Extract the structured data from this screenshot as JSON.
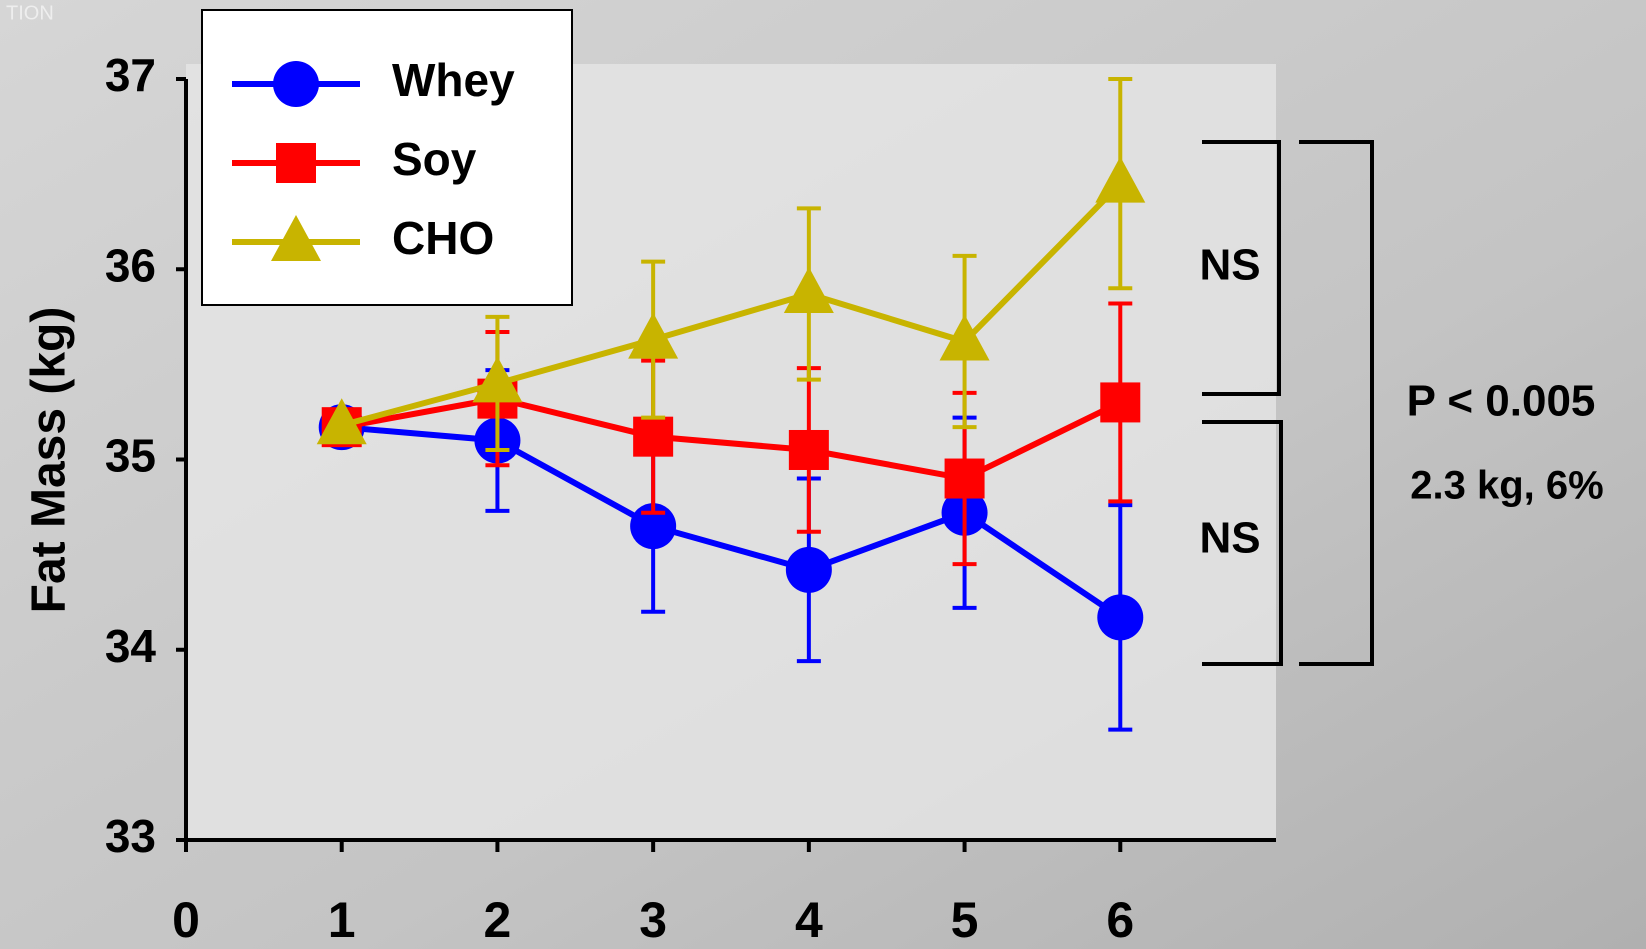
{
  "chart_data": {
    "type": "line",
    "corner_text": "TION",
    "ylabel": "Fat Mass (kg)",
    "x": [
      1,
      2,
      3,
      4,
      5,
      6
    ],
    "series": [
      {
        "name": "Whey",
        "color": "#0000ff",
        "marker": "circle",
        "values": [
          35.17,
          35.1,
          34.65,
          34.42,
          34.72,
          34.17
        ],
        "errors": [
          0,
          0.37,
          0.45,
          0.48,
          0.5,
          0.59
        ]
      },
      {
        "name": "Soy",
        "color": "#ff0000",
        "marker": "square",
        "values": [
          35.17,
          35.32,
          35.12,
          35.05,
          34.9,
          35.3
        ],
        "errors": [
          0,
          0.35,
          0.4,
          0.43,
          0.45,
          0.52
        ]
      },
      {
        "name": "CHO",
        "color": "#c8b400",
        "marker": "triangle",
        "values": [
          35.18,
          35.4,
          35.63,
          35.87,
          35.62,
          36.45
        ],
        "errors": [
          0,
          0.35,
          0.41,
          0.45,
          0.45,
          0.55
        ]
      }
    ],
    "xlim": [
      0,
      7
    ],
    "xticks": [
      0,
      1,
      2,
      3,
      4,
      5,
      6
    ],
    "ylim": [
      33,
      37
    ],
    "yticks": [
      33,
      34,
      35,
      36,
      37
    ],
    "annotations": [
      "NS",
      "NS",
      "P < 0.005",
      "2.3 kg, 6%"
    ],
    "legend": "upper left"
  }
}
